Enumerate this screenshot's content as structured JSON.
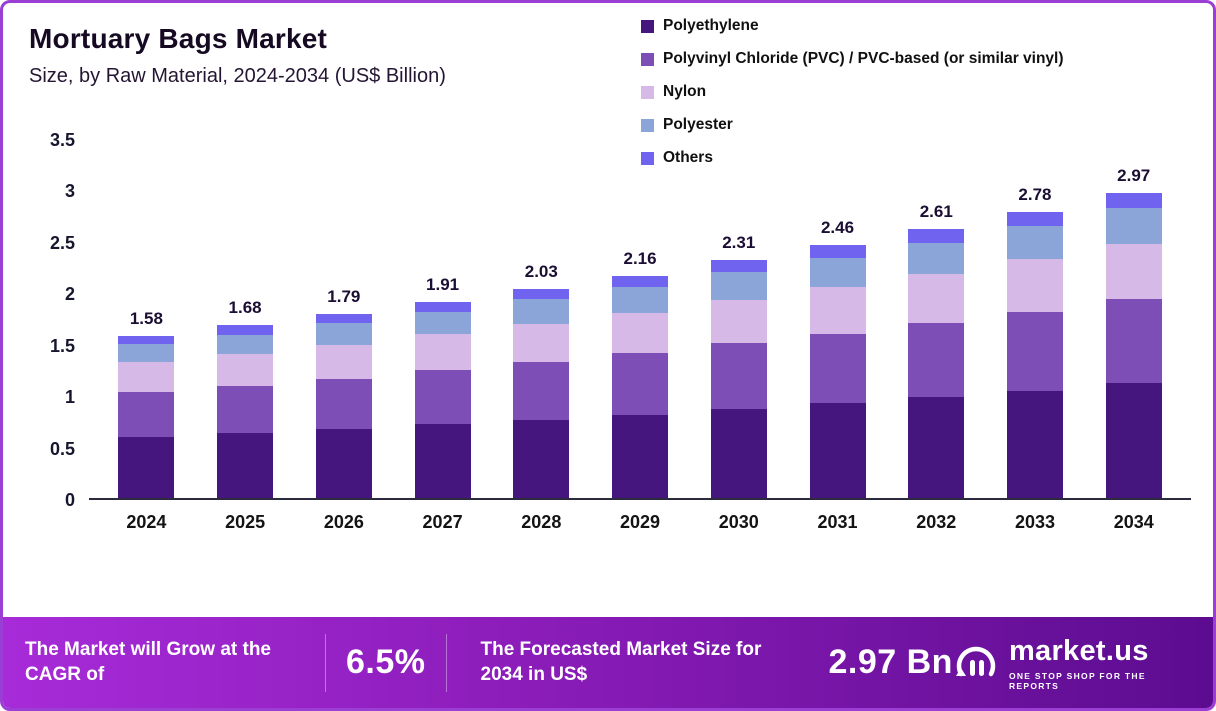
{
  "title": "Mortuary Bags Market",
  "subtitle": "Size, by Raw Material, 2024-2034 (US$ Billion)",
  "colors": {
    "border": "#9b3fd4",
    "banner_from": "#a72bd8",
    "banner_mid": "#8a1cb8",
    "banner_to": "#5c0c90",
    "axis_text": "#16162e"
  },
  "legend": [
    {
      "label": "Polyethylene",
      "color": "#45177e"
    },
    {
      "label": "Polyvinyl Chloride (PVC) / PVC-based (or similar vinyl)",
      "color": "#7d4eb5"
    },
    {
      "label": "Nylon",
      "color": "#d7b9e8"
    },
    {
      "label": "Polyester",
      "color": "#8ca5d8"
    },
    {
      "label": "Others",
      "color": "#6f63f0"
    }
  ],
  "chart_data": {
    "type": "bar",
    "stacked": true,
    "title": "Mortuary Bags Market Size, by Raw Material, 2024-2034 (US$ Billion)",
    "xlabel": "",
    "ylabel": "US$ Billion",
    "ylim": [
      0,
      3.5
    ],
    "yticks": [
      "0",
      "0.5",
      "1",
      "1.5",
      "2",
      "2.5",
      "3",
      "3.5"
    ],
    "grid": false,
    "legend_position": "top-right",
    "categories": [
      "2024",
      "2025",
      "2026",
      "2027",
      "2028",
      "2029",
      "2030",
      "2031",
      "2032",
      "2033",
      "2034"
    ],
    "totals": [
      "1.58",
      "1.68",
      "1.79",
      "1.91",
      "2.03",
      "2.16",
      "2.31",
      "2.46",
      "2.61",
      "2.78",
      "2.97"
    ],
    "series": [
      {
        "name": "Polyethylene",
        "color": "#45177e",
        "values": [
          0.59,
          0.63,
          0.67,
          0.72,
          0.76,
          0.81,
          0.87,
          0.92,
          0.98,
          1.04,
          1.12
        ]
      },
      {
        "name": "Polyvinyl Chloride (PVC) / PVC-based (or similar vinyl)",
        "color": "#7d4eb5",
        "values": [
          0.44,
          0.46,
          0.49,
          0.52,
          0.56,
          0.6,
          0.64,
          0.68,
          0.72,
          0.77,
          0.82
        ]
      },
      {
        "name": "Nylon",
        "color": "#d7b9e8",
        "values": [
          0.29,
          0.31,
          0.33,
          0.35,
          0.37,
          0.39,
          0.42,
          0.45,
          0.48,
          0.51,
          0.53
        ]
      },
      {
        "name": "Polyester",
        "color": "#8ca5d8",
        "values": [
          0.18,
          0.19,
          0.21,
          0.22,
          0.24,
          0.25,
          0.27,
          0.28,
          0.3,
          0.32,
          0.35
        ]
      },
      {
        "name": "Others",
        "color": "#6f63f0",
        "values": [
          0.08,
          0.09,
          0.09,
          0.1,
          0.1,
          0.11,
          0.11,
          0.13,
          0.13,
          0.14,
          0.15
        ]
      }
    ]
  },
  "banner": {
    "cagr_label": "The Market will Grow at the CAGR of",
    "cagr_value": "6.5%",
    "forecast_label": "The Forecasted Market Size for 2034 in US$",
    "forecast_value": "2.97 Bn",
    "logo_text": "market.us",
    "logo_tagline": "One Stop Shop For The Reports"
  }
}
